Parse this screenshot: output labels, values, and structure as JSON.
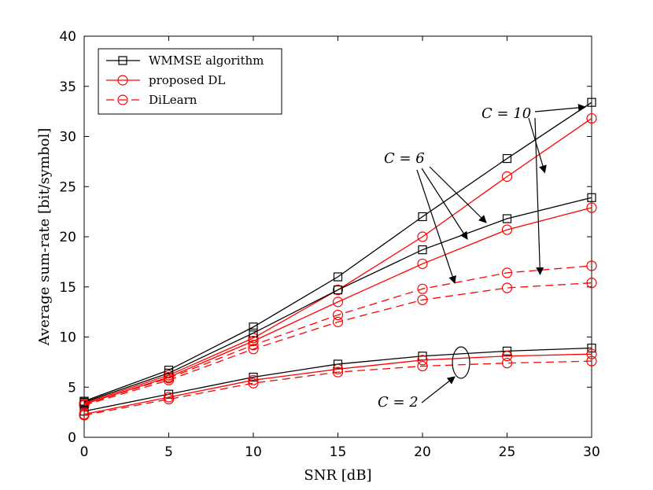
{
  "chart_data": {
    "type": "line",
    "xlabel": "SNR [dB]",
    "ylabel": "Average sum-rate [bit/symbol]",
    "xlim": [
      0,
      30
    ],
    "ylim": [
      0,
      40
    ],
    "xticks": [
      0,
      5,
      10,
      15,
      20,
      25,
      30
    ],
    "yticks": [
      0,
      5,
      10,
      15,
      20,
      25,
      30,
      35,
      40
    ],
    "grid": false,
    "legend_position": "top-left",
    "legend": [
      {
        "label": "WMMSE algorithm",
        "color": "#000000",
        "marker": "square",
        "dash": "solid"
      },
      {
        "label": "proposed DL",
        "color": "#ff0000",
        "marker": "circle",
        "dash": "solid"
      },
      {
        "label": "DiLearn",
        "color": "#ff0000",
        "marker": "circle",
        "dash": "dashed"
      }
    ],
    "x": [
      0,
      5,
      10,
      15,
      20,
      25,
      30
    ],
    "series": [
      {
        "name": "WMMSE algorithm, C = 10",
        "style": 0,
        "values": [
          3.6,
          6.7,
          11.0,
          16.0,
          22.0,
          27.8,
          33.4
        ]
      },
      {
        "name": "proposed DL, C = 10",
        "style": 1,
        "values": [
          3.4,
          6.2,
          9.9,
          14.7,
          20.0,
          26.0,
          31.8
        ]
      },
      {
        "name": "DiLearn, C = 10",
        "style": 2,
        "values": [
          3.3,
          5.9,
          9.2,
          12.2,
          14.8,
          16.4,
          17.1
        ]
      },
      {
        "name": "WMMSE algorithm, C = 6",
        "style": 0,
        "values": [
          3.5,
          6.4,
          10.4,
          14.7,
          18.7,
          21.8,
          23.9
        ]
      },
      {
        "name": "proposed DL, C = 6",
        "style": 1,
        "values": [
          3.3,
          6.0,
          9.6,
          13.5,
          17.3,
          20.7,
          22.9
        ]
      },
      {
        "name": "DiLearn, C = 6",
        "style": 2,
        "values": [
          3.2,
          5.7,
          8.8,
          11.5,
          13.7,
          14.9,
          15.4
        ]
      },
      {
        "name": "WMMSE algorithm, C = 2",
        "style": 0,
        "values": [
          2.6,
          4.3,
          6.0,
          7.3,
          8.1,
          8.6,
          8.9
        ]
      },
      {
        "name": "proposed DL, C = 2",
        "style": 1,
        "values": [
          2.3,
          4.0,
          5.7,
          6.8,
          7.7,
          8.1,
          8.3
        ]
      },
      {
        "name": "DiLearn, C = 2",
        "style": 2,
        "values": [
          2.2,
          3.8,
          5.4,
          6.5,
          7.1,
          7.4,
          7.6
        ]
      }
    ],
    "annotations": [
      {
        "text": "C = 10",
        "points_to": [
          "WMMSE algorithm, C = 10",
          "proposed DL, C = 10",
          "DiLearn, C = 10"
        ]
      },
      {
        "text": "C = 6",
        "points_to": [
          "WMMSE algorithm, C = 6",
          "proposed DL, C = 6",
          "DiLearn, C = 6"
        ]
      },
      {
        "text": "C = 2",
        "points_to": [
          "C = 2 curve group"
        ]
      }
    ]
  }
}
